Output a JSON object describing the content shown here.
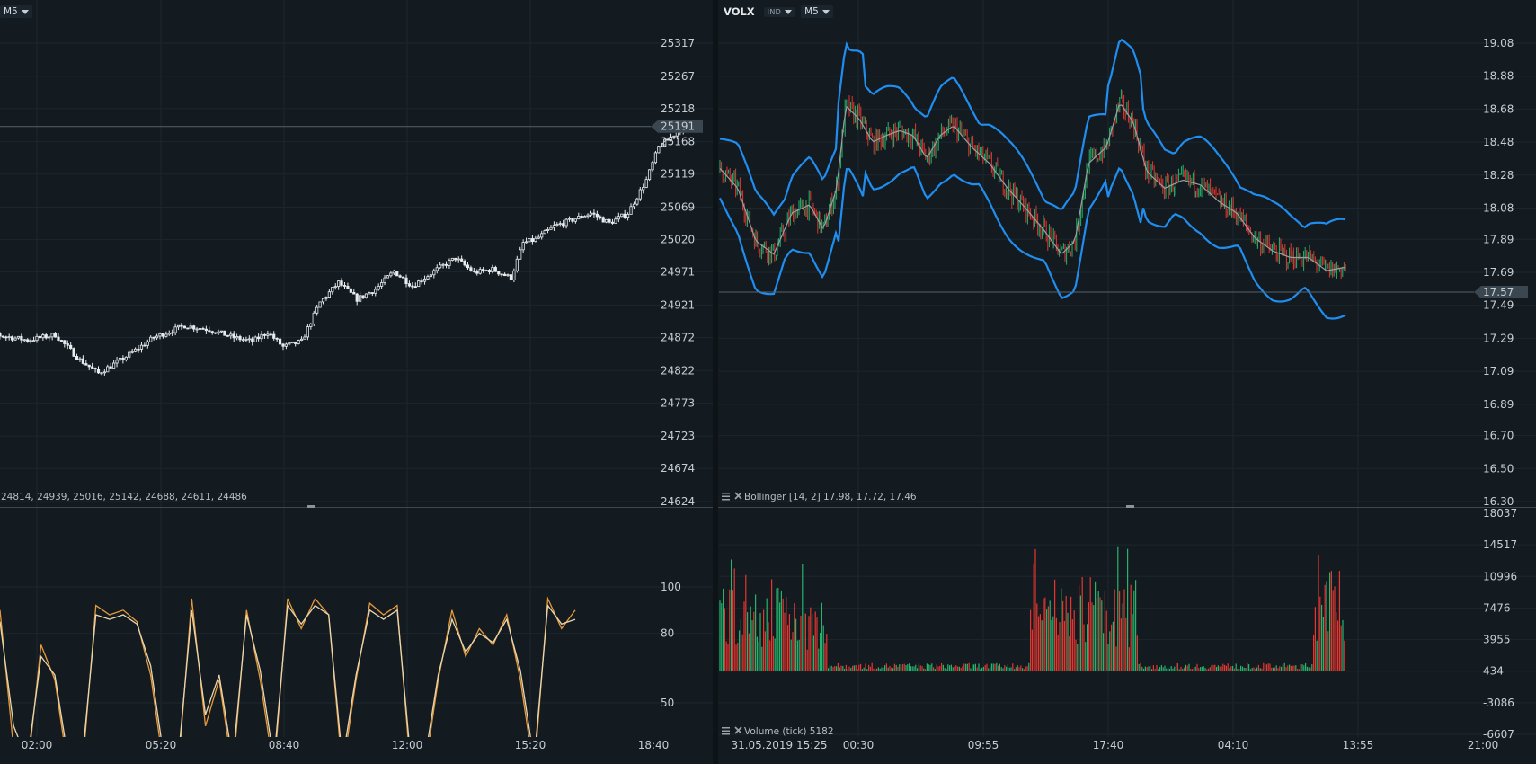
{
  "left_panel": {
    "timeframe": "M5",
    "price_labels": [
      "25317",
      "25267",
      "25218",
      "25168",
      "25119",
      "25069",
      "25020",
      "24971",
      "24921",
      "24872",
      "24822",
      "24773",
      "24723",
      "24674",
      "24624"
    ],
    "current_price": "25191",
    "price_legend": "24814, 24939, 25016, 25142, 24688, 24611, 24486",
    "oscillator_labels": [
      "100",
      "80",
      "50"
    ]
  },
  "right_panel": {
    "symbol": "VOLX",
    "instrument_type": "IND",
    "timeframe": "M5",
    "price_labels": [
      "19.08",
      "18.88",
      "18.68",
      "18.48",
      "18.28",
      "18.08",
      "17.89",
      "17.69",
      "17.49",
      "17.29",
      "17.09",
      "16.89",
      "16.70",
      "16.50",
      "16.30"
    ],
    "current_price": "17.57",
    "indicator_legend": "Bollinger [14, 2] 17.98, 17.72, 17.46",
    "volume_labels": [
      "18037",
      "14517",
      "10996",
      "7476",
      "3955",
      "434",
      "-3086",
      "-6607"
    ],
    "volume_legend": "Volume (tick) 5182"
  },
  "time_axis_left": [
    "02:00",
    "05:20",
    "08:40",
    "12:00",
    "15:20",
    "18:40"
  ],
  "time_axis_right": [
    "31.05.2019 15:25",
    "00:30",
    "09:55",
    "17:40",
    "04:10",
    "13:55",
    "21:00"
  ],
  "colors": {
    "background": "#131b21",
    "grid": "#1c262e",
    "bollinger": "#1f8ef0",
    "up": "#26b36c",
    "down": "#e5362f",
    "oscillator_k": "#e89a3a",
    "oscillator_d": "#e8d6b0",
    "candle_left": "#e8ecef",
    "price_tag": "#3a4650"
  },
  "chart_data": [
    {
      "type": "candlestick",
      "panel": "left-price",
      "ylim": [
        24624,
        25317
      ],
      "y_ticks": [
        25317,
        25267,
        25218,
        25168,
        25119,
        25069,
        25020,
        24971,
        24921,
        24872,
        24822,
        24773,
        24723,
        24674,
        24624
      ],
      "last_price": 25191,
      "close_path": [
        [
          "00:10",
          24905
        ],
        [
          "01:00",
          24875
        ],
        [
          "01:45",
          24868
        ],
        [
          "02:30",
          24876
        ],
        [
          "03:10",
          24838
        ],
        [
          "03:40",
          24818
        ],
        [
          "04:20",
          24840
        ],
        [
          "05:10",
          24872
        ],
        [
          "06:00",
          24890
        ],
        [
          "06:40",
          24884
        ],
        [
          "07:20",
          24872
        ],
        [
          "07:50",
          24866
        ],
        [
          "08:15",
          24880
        ],
        [
          "08:40",
          24858
        ],
        [
          "09:10",
          24866
        ],
        [
          "09:40",
          24925
        ],
        [
          "10:10",
          24955
        ],
        [
          "10:40",
          24930
        ],
        [
          "11:10",
          24945
        ],
        [
          "11:40",
          24972
        ],
        [
          "12:10",
          24950
        ],
        [
          "12:50",
          24975
        ],
        [
          "13:20",
          24992
        ],
        [
          "13:50",
          24970
        ],
        [
          "14:20",
          24975
        ],
        [
          "14:50",
          24962
        ],
        [
          "15:10",
          25015
        ],
        [
          "15:30",
          25020
        ],
        [
          "16:00",
          25040
        ],
        [
          "16:30",
          25050
        ],
        [
          "17:00",
          25060
        ],
        [
          "17:30",
          25045
        ],
        [
          "18:00",
          25060
        ],
        [
          "18:30",
          25110
        ],
        [
          "18:50",
          25160
        ],
        [
          "19:10",
          25175
        ],
        [
          "19:30",
          25191
        ]
      ]
    },
    {
      "type": "line",
      "panel": "left-oscillator",
      "ylim": [
        30,
        130
      ],
      "y_ticks": [
        100,
        80,
        50
      ],
      "series": [
        {
          "values_k": [
            90,
            30,
            20,
            75,
            60,
            20,
            20,
            92,
            88,
            90,
            85,
            62,
            20,
            20,
            95,
            40,
            60,
            20,
            90,
            60,
            20,
            95,
            82,
            95,
            88,
            20,
            60,
            93,
            88,
            92,
            20,
            20,
            60,
            90,
            70,
            82,
            75,
            88,
            60,
            20,
            95,
            82,
            90
          ]
        },
        {
          "values_d": [
            85,
            40,
            25,
            70,
            62,
            25,
            25,
            88,
            86,
            88,
            84,
            66,
            25,
            25,
            90,
            45,
            62,
            25,
            88,
            64,
            25,
            92,
            84,
            92,
            88,
            25,
            62,
            90,
            86,
            90,
            25,
            25,
            62,
            86,
            72,
            80,
            76,
            86,
            64,
            25,
            92,
            84,
            86
          ]
        }
      ]
    },
    {
      "type": "candlestick",
      "panel": "right-price",
      "symbol": "VOLX",
      "ylim": [
        16.3,
        19.08
      ],
      "y_ticks": [
        19.08,
        18.88,
        18.68,
        18.48,
        18.28,
        18.08,
        17.89,
        17.69,
        17.49,
        17.29,
        17.09,
        16.89,
        16.7,
        16.5,
        16.3
      ],
      "last_price": 17.57,
      "middle_path": [
        [
          0,
          18.32
        ],
        [
          20,
          18.2
        ],
        [
          40,
          17.88
        ],
        [
          60,
          17.8
        ],
        [
          80,
          18.05
        ],
        [
          100,
          18.1
        ],
        [
          115,
          17.95
        ],
        [
          130,
          18.2
        ],
        [
          140,
          18.7
        ],
        [
          155,
          18.62
        ],
        [
          170,
          18.48
        ],
        [
          185,
          18.52
        ],
        [
          200,
          18.55
        ],
        [
          215,
          18.52
        ],
        [
          230,
          18.38
        ],
        [
          245,
          18.52
        ],
        [
          260,
          18.58
        ],
        [
          280,
          18.45
        ],
        [
          300,
          18.35
        ],
        [
          320,
          18.2
        ],
        [
          340,
          18.08
        ],
        [
          360,
          17.95
        ],
        [
          380,
          17.8
        ],
        [
          395,
          17.88
        ],
        [
          410,
          18.35
        ],
        [
          430,
          18.45
        ],
        [
          445,
          18.72
        ],
        [
          460,
          18.6
        ],
        [
          475,
          18.3
        ],
        [
          495,
          18.2
        ],
        [
          515,
          18.25
        ],
        [
          535,
          18.22
        ],
        [
          555,
          18.12
        ],
        [
          575,
          18.05
        ],
        [
          595,
          17.9
        ],
        [
          615,
          17.82
        ],
        [
          635,
          17.78
        ],
        [
          655,
          17.78
        ],
        [
          675,
          17.7
        ],
        [
          695,
          17.72
        ]
      ]
    },
    {
      "type": "bar",
      "panel": "right-volume",
      "series_name": "Volume (tick)",
      "ylim": [
        -6607,
        18037
      ],
      "y_ticks": [
        18037,
        14517,
        10996,
        7476,
        3955,
        434,
        -3086,
        -6607
      ],
      "last_value": 5182,
      "segments": [
        {
          "from": 0,
          "to": 120,
          "level": 9500
        },
        {
          "from": 120,
          "to": 345,
          "level": 900
        },
        {
          "from": 345,
          "to": 465,
          "level": 10500
        },
        {
          "from": 465,
          "to": 660,
          "level": 900
        },
        {
          "from": 660,
          "to": 695,
          "level": 11500
        }
      ]
    }
  ]
}
